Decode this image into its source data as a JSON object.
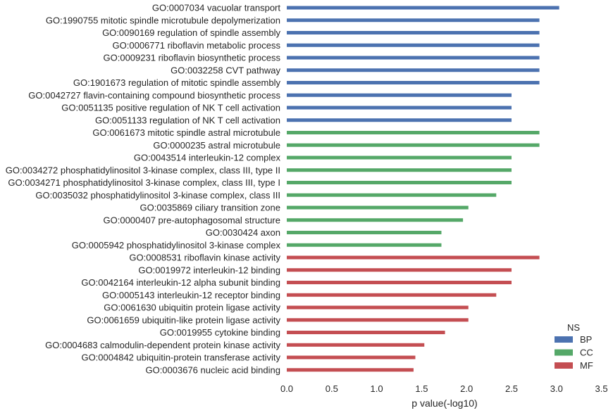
{
  "chart_data": {
    "type": "bar",
    "orientation": "horizontal",
    "xlabel": "p value(-log10)",
    "xlim": [
      0,
      3.5
    ],
    "xticks": [
      "0.0",
      "0.5",
      "1.0",
      "1.5",
      "2.0",
      "2.5",
      "3.0",
      "3.5"
    ],
    "grid": false,
    "legend": {
      "title": "NS",
      "placement": "bottom-right",
      "entries": [
        {
          "name": "BP",
          "color": "#4c72b0"
        },
        {
          "name": "CC",
          "color": "#55a868"
        },
        {
          "name": "MF",
          "color": "#c44e52"
        }
      ]
    },
    "categories": [
      {
        "label": "GO:0007034 vacuolar transport",
        "value": 3.03,
        "ns": "BP"
      },
      {
        "label": "GO:1990755 mitotic spindle microtubule depolymerization",
        "value": 2.81,
        "ns": "BP"
      },
      {
        "label": "GO:0090169 regulation of spindle assembly",
        "value": 2.81,
        "ns": "BP"
      },
      {
        "label": "GO:0006771 riboflavin metabolic process",
        "value": 2.81,
        "ns": "BP"
      },
      {
        "label": "GO:0009231 riboflavin biosynthetic process",
        "value": 2.81,
        "ns": "BP"
      },
      {
        "label": "GO:0032258 CVT pathway",
        "value": 2.81,
        "ns": "BP"
      },
      {
        "label": "GO:1901673 regulation of mitotic spindle assembly",
        "value": 2.81,
        "ns": "BP"
      },
      {
        "label": "GO:0042727 flavin-containing compound biosynthetic process",
        "value": 2.5,
        "ns": "BP"
      },
      {
        "label": "GO:0051135 positive regulation of NK T cell activation",
        "value": 2.5,
        "ns": "BP"
      },
      {
        "label": "GO:0051133 regulation of NK T cell activation",
        "value": 2.5,
        "ns": "BP"
      },
      {
        "label": "GO:0061673 mitotic spindle astral microtubule",
        "value": 2.81,
        "ns": "CC"
      },
      {
        "label": "GO:0000235 astral microtubule",
        "value": 2.81,
        "ns": "CC"
      },
      {
        "label": "GO:0043514 interleukin-12 complex",
        "value": 2.5,
        "ns": "CC"
      },
      {
        "label": "GO:0034272 phosphatidylinositol 3-kinase complex, class III, type II",
        "value": 2.5,
        "ns": "CC"
      },
      {
        "label": "GO:0034271 phosphatidylinositol 3-kinase complex, class III, type I",
        "value": 2.5,
        "ns": "CC"
      },
      {
        "label": "GO:0035032 phosphatidylinositol 3-kinase complex, class III",
        "value": 2.33,
        "ns": "CC"
      },
      {
        "label": "GO:0035869 ciliary transition zone",
        "value": 2.02,
        "ns": "CC"
      },
      {
        "label": "GO:0000407 pre-autophagosomal structure",
        "value": 1.96,
        "ns": "CC"
      },
      {
        "label": "GO:0030424 axon",
        "value": 1.72,
        "ns": "CC"
      },
      {
        "label": "GO:0005942 phosphatidylinositol 3-kinase complex",
        "value": 1.72,
        "ns": "CC"
      },
      {
        "label": "GO:0008531 riboflavin kinase activity",
        "value": 2.81,
        "ns": "MF"
      },
      {
        "label": "GO:0019972 interleukin-12 binding",
        "value": 2.5,
        "ns": "MF"
      },
      {
        "label": "GO:0042164 interleukin-12 alpha subunit binding",
        "value": 2.5,
        "ns": "MF"
      },
      {
        "label": "GO:0005143 interleukin-12 receptor binding",
        "value": 2.33,
        "ns": "MF"
      },
      {
        "label": "GO:0061630 ubiquitin protein ligase activity",
        "value": 2.02,
        "ns": "MF"
      },
      {
        "label": "GO:0061659 ubiquitin-like protein ligase activity",
        "value": 2.02,
        "ns": "MF"
      },
      {
        "label": "GO:0019955 cytokine binding",
        "value": 1.76,
        "ns": "MF"
      },
      {
        "label": "GO:0004683 calmodulin-dependent protein kinase activity",
        "value": 1.53,
        "ns": "MF"
      },
      {
        "label": "GO:0004842 ubiquitin-protein transferase activity",
        "value": 1.43,
        "ns": "MF"
      },
      {
        "label": "GO:0003676 nucleic acid binding",
        "value": 1.41,
        "ns": "MF"
      }
    ]
  }
}
